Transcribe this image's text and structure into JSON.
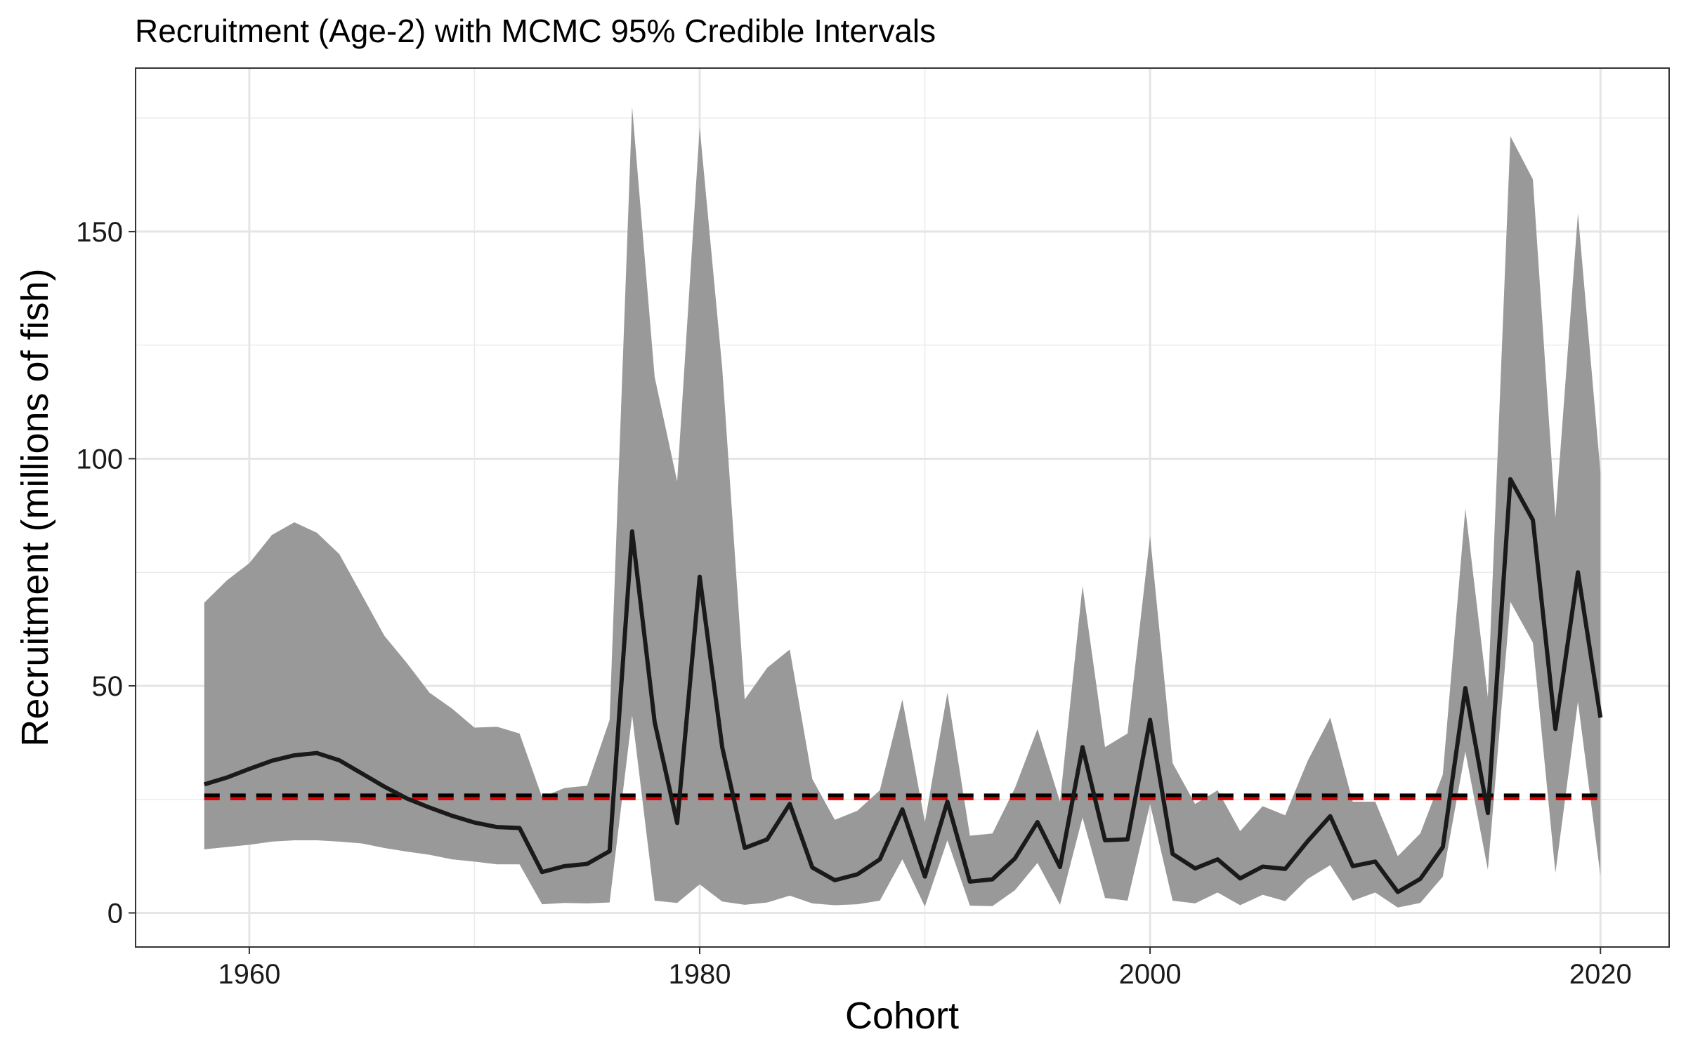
{
  "chart_data": {
    "type": "line",
    "title": "Recruitment (Age-2) with MCMC 95% Credible Intervals",
    "xlabel": "Cohort",
    "ylabel": "Recruitment (millions of fish)",
    "xlim": [
      1954.95,
      2023.05
    ],
    "ylim": [
      -7.5,
      186
    ],
    "x_ticks": [
      1960,
      1980,
      2000,
      2020
    ],
    "x_minor_ticks": [
      1970,
      1990,
      2010
    ],
    "y_ticks": [
      0,
      50,
      100,
      150
    ],
    "y_minor_ticks": [
      25,
      75,
      125,
      175
    ],
    "x_tick_labels": [
      "1960",
      "1980",
      "2000",
      "2020"
    ],
    "y_tick_labels": [
      "0",
      "50",
      "100",
      "150"
    ],
    "grid": true,
    "legend": "none",
    "x": [
      1958,
      1959,
      1960,
      1961,
      1962,
      1963,
      1964,
      1965,
      1966,
      1967,
      1968,
      1969,
      1970,
      1971,
      1972,
      1973,
      1974,
      1975,
      1976,
      1977,
      1978,
      1979,
      1980,
      1981,
      1982,
      1983,
      1984,
      1985,
      1986,
      1987,
      1988,
      1989,
      1990,
      1991,
      1992,
      1993,
      1994,
      1995,
      1996,
      1997,
      1998,
      1999,
      2000,
      2001,
      2002,
      2003,
      2004,
      2005,
      2006,
      2007,
      2008,
      2009,
      2010,
      2011,
      2012,
      2013,
      2014,
      2015,
      2016,
      2017,
      2018,
      2019,
      2020
    ],
    "series": [
      {
        "style": "ribbon",
        "color": "#999999",
        "upper": [
          68.3,
          73.2,
          77.0,
          83.2,
          86.0,
          83.7,
          79.0,
          70.0,
          61.0,
          55.0,
          48.5,
          45.0,
          40.8,
          41.0,
          39.5,
          25.5,
          27.5,
          28.0,
          42.5,
          177.5,
          118.0,
          95.0,
          173.0,
          120.0,
          47.0,
          54.0,
          58.0,
          29.5,
          20.5,
          22.5,
          27.0,
          47.0,
          20.0,
          48.5,
          17.0,
          17.5,
          27.5,
          40.5,
          24.5,
          72.0,
          36.5,
          39.5,
          83.0,
          33.0,
          24.0,
          27.0,
          18.0,
          23.5,
          21.5,
          33.5,
          43.0,
          24.5,
          24.5,
          12.5,
          17.5,
          30.5,
          89.0,
          47.5,
          171.0,
          161.5,
          87.0,
          154.0,
          97.0
        ],
        "lower": [
          14.0,
          14.5,
          15.0,
          15.7,
          16.0,
          16.0,
          15.7,
          15.3,
          14.3,
          13.5,
          12.8,
          11.8,
          11.3,
          10.7,
          10.7,
          1.9,
          2.2,
          2.1,
          2.3,
          43.5,
          2.7,
          2.2,
          6.3,
          2.5,
          1.8,
          2.3,
          3.8,
          2.1,
          1.7,
          1.9,
          2.7,
          11.8,
          1.4,
          16.0,
          1.6,
          1.5,
          5.0,
          11.0,
          1.8,
          21.0,
          3.3,
          2.7,
          24.0,
          2.7,
          2.1,
          4.5,
          1.7,
          4.0,
          2.6,
          7.5,
          10.5,
          2.7,
          4.5,
          1.2,
          2.2,
          8.0,
          35.5,
          9.5,
          68.5,
          59.5,
          8.8,
          46.5,
          8.2
        ]
      },
      {
        "style": "line",
        "color": "#1a1a1a",
        "values": [
          28.3,
          29.8,
          31.7,
          33.5,
          34.7,
          35.2,
          33.6,
          30.7,
          27.8,
          25.2,
          23.2,
          21.4,
          19.9,
          18.9,
          18.7,
          9.0,
          10.3,
          10.8,
          13.6,
          84.0,
          42.0,
          19.8,
          74.0,
          36.5,
          14.3,
          16.2,
          24.0,
          10.0,
          7.2,
          8.5,
          11.8,
          22.8,
          8.0,
          24.5,
          6.9,
          7.4,
          12.0,
          20.0,
          10.1,
          36.5,
          16.0,
          16.2,
          42.5,
          13.0,
          9.8,
          11.8,
          7.6,
          10.2,
          9.7,
          15.8,
          21.3,
          10.3,
          11.3,
          4.6,
          7.5,
          14.5,
          49.5,
          22.0,
          95.5,
          86.5,
          40.5,
          75.0,
          43.0
        ]
      },
      {
        "style": "hline-dashed",
        "color": "#dd0000",
        "y": 25.2
      },
      {
        "style": "hline-dashed",
        "color": "#000000",
        "y": 25.9
      }
    ]
  }
}
